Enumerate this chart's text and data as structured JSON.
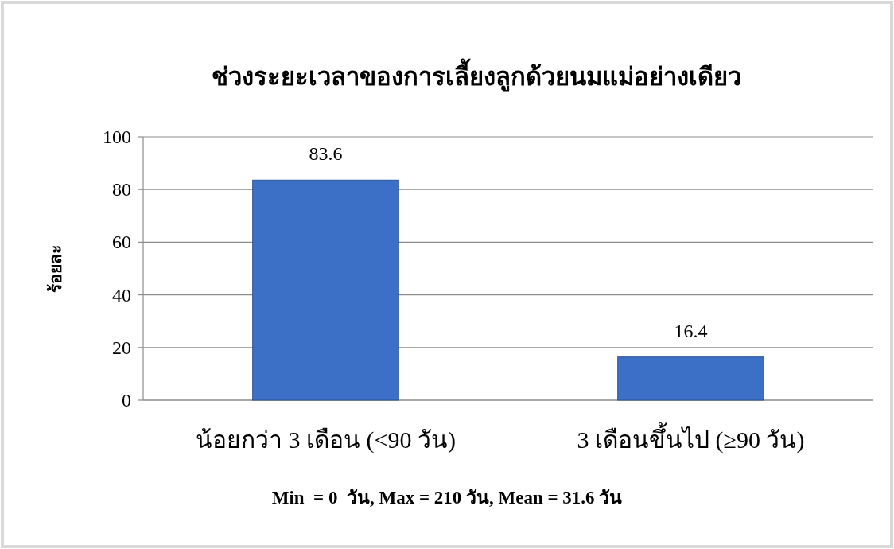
{
  "chart_data": {
    "type": "bar",
    "title": "ช่วงระยะเวลาของการเลี้ยงลูกด้วยนมแม่อย่างเดียว",
    "ylabel": "ร้อยละ",
    "categories": [
      "น้อยกว่า 3 เดือน (<90 วัน)",
      "3 เดือนขึ้นไป  (≥90 วัน)"
    ],
    "values": [
      83.6,
      16.4
    ],
    "color": "#3b70c6",
    "ylim": [
      0,
      100
    ],
    "yticks": [
      0,
      20,
      40,
      60,
      80,
      100
    ],
    "grid": "y",
    "data_labels": true,
    "annotations": [
      "Min  = 0  วัน, Max = 210 วัน, Mean = 31.6 วัน"
    ]
  }
}
